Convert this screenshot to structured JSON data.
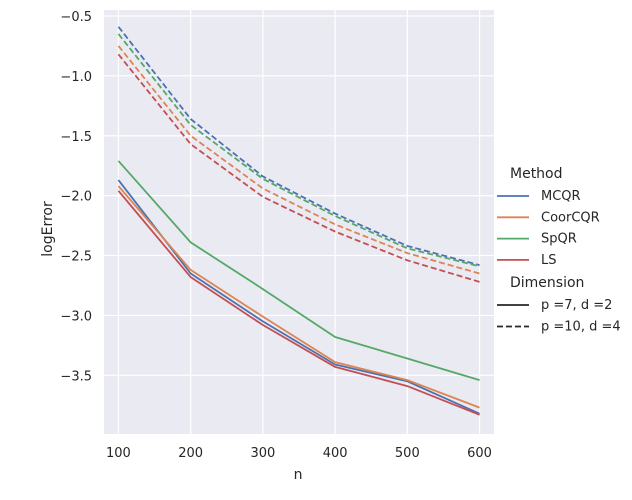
{
  "chart_data": {
    "type": "line",
    "title": "",
    "xlabel": "n",
    "ylabel": "logError",
    "x": [
      100,
      200,
      300,
      400,
      500,
      600
    ],
    "xlim": [
      80,
      620
    ],
    "ylim": [
      -3.99,
      -0.45
    ],
    "xticks": [
      100,
      200,
      300,
      400,
      500,
      600
    ],
    "xtick_labels": [
      "100",
      "200",
      "300",
      "400",
      "500",
      "600"
    ],
    "yticks": [
      -0.5,
      -1.0,
      -1.5,
      -2.0,
      -2.5,
      -3.0,
      -3.5
    ],
    "ytick_labels": [
      "−0.5",
      "−1.0",
      "−1.5",
      "−2.0",
      "−2.5",
      "−3.0",
      "−3.5"
    ],
    "grid": true,
    "background": "#eaeaf2",
    "series": [
      {
        "name": "MCQR",
        "dimension": "p =7, d =2",
        "style": "solid",
        "color": "#4c72b0",
        "values": [
          -1.87,
          -2.65,
          -3.05,
          -3.41,
          -3.55,
          -3.82
        ]
      },
      {
        "name": "CoorCQR",
        "dimension": "p =7, d =2",
        "style": "solid",
        "color": "#dd8452",
        "values": [
          -1.92,
          -2.62,
          -3.01,
          -3.39,
          -3.54,
          -3.77
        ]
      },
      {
        "name": "SpQR",
        "dimension": "p =7, d =2",
        "style": "solid",
        "color": "#55a868",
        "values": [
          -1.71,
          -2.39,
          -2.78,
          -3.18,
          -3.36,
          -3.54
        ]
      },
      {
        "name": "LS",
        "dimension": "p =7, d =2",
        "style": "solid",
        "color": "#c44e52",
        "values": [
          -1.96,
          -2.68,
          -3.08,
          -3.43,
          -3.59,
          -3.83
        ]
      },
      {
        "name": "MCQR",
        "dimension": "p =10, d =4",
        "style": "dashed",
        "color": "#4c72b0",
        "values": [
          -0.59,
          -1.36,
          -1.84,
          -2.15,
          -2.42,
          -2.58
        ]
      },
      {
        "name": "CoorCQR",
        "dimension": "p =10, d =4",
        "style": "dashed",
        "color": "#dd8452",
        "values": [
          -0.75,
          -1.5,
          -1.94,
          -2.24,
          -2.48,
          -2.65
        ]
      },
      {
        "name": "SpQR",
        "dimension": "p =10, d =4",
        "style": "dashed",
        "color": "#55a868",
        "values": [
          -0.65,
          -1.41,
          -1.86,
          -2.17,
          -2.44,
          -2.59
        ]
      },
      {
        "name": "LS",
        "dimension": "p =10, d =4",
        "style": "dashed",
        "color": "#c44e52",
        "values": [
          -0.82,
          -1.57,
          -2.01,
          -2.3,
          -2.54,
          -2.72
        ]
      }
    ],
    "legend": {
      "placement": "right",
      "method_title": "Method",
      "methods": [
        {
          "label": "MCQR",
          "color": "#4c72b0"
        },
        {
          "label": "CoorCQR",
          "color": "#dd8452"
        },
        {
          "label": "SpQR",
          "color": "#55a868"
        },
        {
          "label": "LS",
          "color": "#c44e52"
        }
      ],
      "dimension_title": "Dimension",
      "dimensions": [
        {
          "label": "p =7, d =2",
          "style": "solid"
        },
        {
          "label": "p =10, d =4",
          "style": "dashed"
        }
      ]
    }
  }
}
